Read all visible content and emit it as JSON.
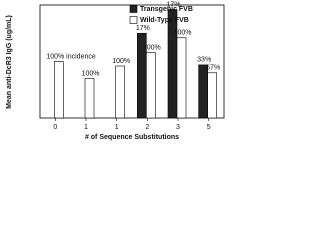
{
  "chart_data": {
    "type": "bar",
    "y_label": "Mean anti-DcR3 IgG (ug/mL)",
    "x_label": "# of Sequence Substitutions",
    "categories": [
      "0",
      "1",
      "1",
      "2",
      "3",
      "5"
    ],
    "series": [
      {
        "name": "Transgenic FVB",
        "color": "#222222",
        "values": [
          null,
          null,
          null,
          7.5,
          9.6,
          4.7
        ],
        "labels": [
          null,
          null,
          null,
          "17%",
          "17%",
          "33%"
        ]
      },
      {
        "name": "Wild-Type FVB",
        "color": "#ffffff",
        "values": [
          5.0,
          3.5,
          4.6,
          5.8,
          7.1,
          4.0
        ],
        "labels": [
          "100% incidence",
          "100%",
          "100%",
          "100%",
          "100%",
          "67%"
        ]
      }
    ],
    "ylim": [
      0,
      10
    ],
    "legend": "upper-right"
  }
}
